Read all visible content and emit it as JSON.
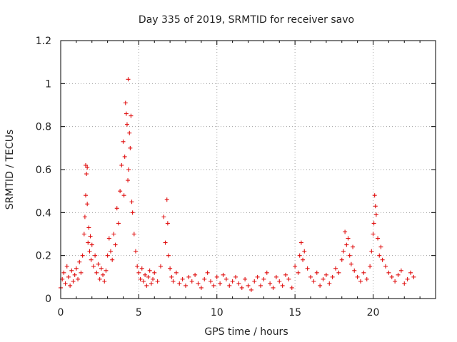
{
  "chart_data": {
    "type": "scatter",
    "title": "Day 335 of 2019, SRMTID for receiver savo",
    "xlabel": "GPS time / hours",
    "ylabel": "SRMTID / TECUs",
    "xlim": [
      0,
      24
    ],
    "ylim": [
      0,
      1.2
    ],
    "grid": true,
    "marker": "+",
    "marker_color": "#e01010",
    "x_ticks": [
      0,
      5,
      10,
      15,
      20
    ],
    "x_tick_labels": [
      "0",
      "5",
      "10",
      "15",
      "20"
    ],
    "y_ticks": [
      0,
      0.2,
      0.4,
      0.6,
      0.8,
      1.0,
      1.2
    ],
    "y_tick_labels": [
      "0",
      "0.2",
      "0.4",
      "0.6",
      "0.8",
      "1",
      "1.2"
    ],
    "series": [
      {
        "name": "SRMTID",
        "x": [
          0.0,
          0.1,
          0.2,
          0.3,
          0.4,
          0.5,
          0.6,
          0.7,
          0.8,
          0.9,
          1.0,
          1.1,
          1.2,
          1.3,
          1.4,
          1.5,
          1.55,
          1.6,
          1.6,
          1.65,
          1.7,
          1.7,
          1.75,
          1.8,
          1.85,
          1.9,
          1.95,
          2.0,
          2.1,
          2.2,
          2.3,
          2.4,
          2.5,
          2.6,
          2.7,
          2.8,
          2.9,
          3.0,
          3.1,
          3.2,
          3.3,
          3.4,
          3.5,
          3.6,
          3.7,
          3.8,
          3.9,
          4.0,
          4.05,
          4.1,
          4.15,
          4.2,
          4.25,
          4.3,
          4.32,
          4.35,
          4.4,
          4.45,
          4.5,
          4.55,
          4.6,
          4.7,
          4.8,
          4.9,
          5.0,
          5.1,
          5.2,
          5.3,
          5.4,
          5.5,
          5.6,
          5.7,
          5.8,
          5.9,
          6.0,
          6.2,
          6.4,
          6.6,
          6.7,
          6.8,
          6.85,
          6.9,
          7.0,
          7.1,
          7.2,
          7.4,
          7.6,
          7.8,
          8.0,
          8.2,
          8.4,
          8.6,
          8.8,
          9.0,
          9.2,
          9.4,
          9.6,
          9.8,
          10.0,
          10.2,
          10.4,
          10.6,
          10.8,
          11.0,
          11.2,
          11.4,
          11.6,
          11.8,
          12.0,
          12.2,
          12.4,
          12.6,
          12.8,
          13.0,
          13.2,
          13.4,
          13.6,
          13.8,
          14.0,
          14.2,
          14.4,
          14.6,
          14.8,
          15.0,
          15.2,
          15.3,
          15.4,
          15.5,
          15.6,
          15.8,
          16.0,
          16.2,
          16.4,
          16.6,
          16.8,
          17.0,
          17.2,
          17.4,
          17.6,
          17.8,
          18.0,
          18.1,
          18.2,
          18.3,
          18.4,
          18.5,
          18.6,
          18.7,
          18.8,
          19.0,
          19.2,
          19.4,
          19.6,
          19.8,
          19.9,
          20.0,
          20.05,
          20.1,
          20.15,
          20.2,
          20.3,
          20.4,
          20.5,
          20.6,
          20.8,
          21.0,
          21.2,
          21.4,
          21.6,
          21.8,
          22.0,
          22.2,
          22.4,
          22.6
        ],
        "y": [
          0.05,
          0.09,
          0.12,
          0.07,
          0.15,
          0.1,
          0.06,
          0.13,
          0.08,
          0.11,
          0.14,
          0.09,
          0.17,
          0.12,
          0.2,
          0.3,
          0.38,
          0.48,
          0.62,
          0.58,
          0.61,
          0.44,
          0.26,
          0.33,
          0.22,
          0.29,
          0.18,
          0.25,
          0.15,
          0.2,
          0.12,
          0.16,
          0.09,
          0.14,
          0.11,
          0.08,
          0.13,
          0.2,
          0.28,
          0.22,
          0.18,
          0.3,
          0.25,
          0.42,
          0.35,
          0.5,
          0.62,
          0.73,
          0.48,
          0.66,
          0.91,
          0.86,
          0.81,
          0.55,
          1.02,
          0.6,
          0.77,
          0.7,
          0.85,
          0.45,
          0.4,
          0.3,
          0.22,
          0.15,
          0.12,
          0.09,
          0.14,
          0.08,
          0.11,
          0.06,
          0.1,
          0.13,
          0.07,
          0.09,
          0.12,
          0.08,
          0.15,
          0.38,
          0.26,
          0.46,
          0.35,
          0.2,
          0.14,
          0.1,
          0.08,
          0.12,
          0.07,
          0.09,
          0.06,
          0.1,
          0.08,
          0.11,
          0.07,
          0.05,
          0.09,
          0.12,
          0.08,
          0.06,
          0.1,
          0.07,
          0.11,
          0.09,
          0.06,
          0.08,
          0.1,
          0.07,
          0.05,
          0.09,
          0.06,
          0.04,
          0.08,
          0.1,
          0.06,
          0.09,
          0.12,
          0.07,
          0.05,
          0.1,
          0.08,
          0.06,
          0.11,
          0.09,
          0.05,
          0.15,
          0.12,
          0.2,
          0.26,
          0.18,
          0.22,
          0.14,
          0.1,
          0.08,
          0.12,
          0.06,
          0.09,
          0.11,
          0.07,
          0.1,
          0.14,
          0.12,
          0.18,
          0.22,
          0.31,
          0.25,
          0.28,
          0.2,
          0.16,
          0.24,
          0.13,
          0.1,
          0.08,
          0.12,
          0.09,
          0.15,
          0.22,
          0.3,
          0.35,
          0.48,
          0.43,
          0.39,
          0.28,
          0.2,
          0.24,
          0.18,
          0.15,
          0.12,
          0.1,
          0.08,
          0.11,
          0.13,
          0.07,
          0.09,
          0.12,
          0.1
        ]
      }
    ]
  }
}
